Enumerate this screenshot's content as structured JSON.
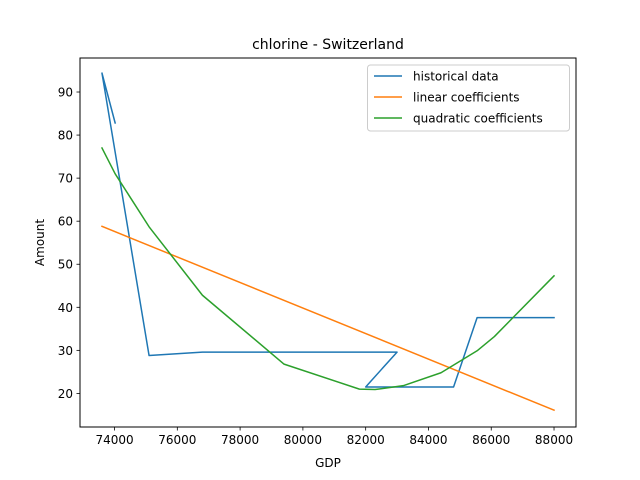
{
  "chart_data": {
    "type": "line",
    "title": "chlorine - Switzerland",
    "xlabel": "GDP",
    "ylabel": "Amount",
    "xlim": [
      72900,
      88700
    ],
    "ylim": [
      12.2,
      97.9
    ],
    "xticks": [
      74000,
      76000,
      78000,
      80000,
      82000,
      84000,
      86000,
      88000
    ],
    "yticks": [
      20,
      30,
      40,
      50,
      60,
      70,
      80,
      90
    ],
    "legend_position": "top-right",
    "series": [
      {
        "name": "historical data",
        "color": "#1f77b4",
        "x": [
          74020,
          73600,
          75100,
          76800,
          83000,
          82000,
          84800,
          85550,
          88000
        ],
        "y": [
          82.8,
          94.4,
          28.8,
          29.6,
          29.6,
          21.5,
          21.5,
          37.6,
          37.6
        ]
      },
      {
        "name": "linear coefficients",
        "color": "#ff7f0e",
        "x": [
          73600,
          88000
        ],
        "y": [
          58.8,
          16.1
        ]
      },
      {
        "name": "quadratic coefficients",
        "color": "#2ca02c",
        "x": [
          73600,
          74020,
          75100,
          76800,
          79400,
          81800,
          82300,
          83200,
          84400,
          85550,
          86100,
          88000
        ],
        "y": [
          77.0,
          71.0,
          58.7,
          42.8,
          26.8,
          21.0,
          20.9,
          21.8,
          24.8,
          29.9,
          33.2,
          47.3
        ]
      }
    ]
  }
}
